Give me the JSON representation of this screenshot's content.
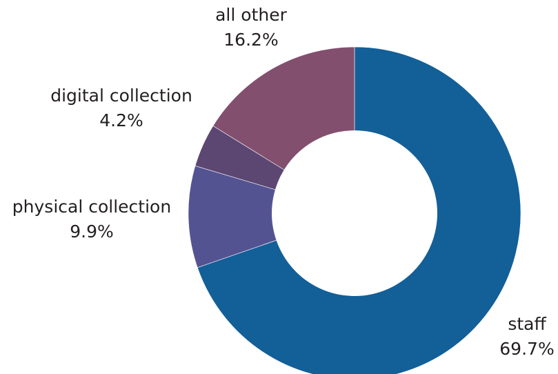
{
  "chart_data": {
    "type": "pie",
    "style": "donut",
    "categories": [
      "staff",
      "physical collection",
      "digital collection",
      "all other"
    ],
    "values": [
      69.7,
      9.9,
      4.2,
      16.2
    ],
    "value_labels": [
      "69.7%",
      "9.9%",
      "4.2%",
      "16.2%"
    ],
    "colors": [
      "#135f98",
      "#545392",
      "#5c4672",
      "#834f6e"
    ],
    "unit": "%",
    "start_position": "12 o'clock",
    "direction": "clockwise",
    "legend": "none (direct labels)"
  }
}
